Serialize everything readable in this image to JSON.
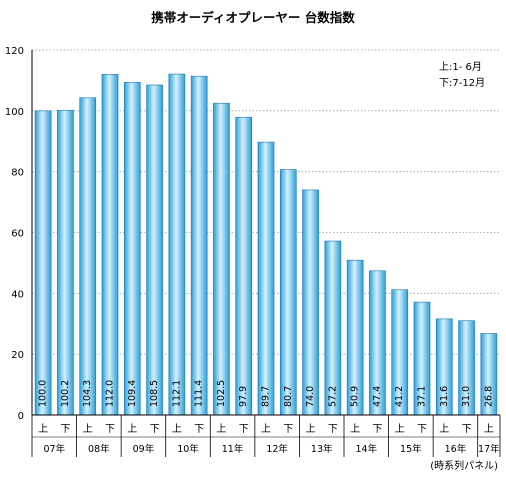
{
  "chart_data": {
    "type": "bar",
    "title": "携帯オーディオプレーヤー 台数指数",
    "categories": [
      "07年上",
      "07年下",
      "08年上",
      "08年下",
      "09年上",
      "09年下",
      "10年上",
      "10年下",
      "11年上",
      "11年下",
      "12年上",
      "12年下",
      "13年上",
      "13年下",
      "14年上",
      "14年下",
      "15年上",
      "15年下",
      "16年上",
      "16年下",
      "17年上"
    ],
    "half_labels": [
      "上",
      "下",
      "上",
      "下",
      "上",
      "下",
      "上",
      "下",
      "上",
      "下",
      "上",
      "下",
      "上",
      "下",
      "上",
      "下",
      "上",
      "下",
      "上",
      "下",
      "上"
    ],
    "year_labels": [
      "07年",
      "08年",
      "09年",
      "10年",
      "11年",
      "12年",
      "13年",
      "14年",
      "15年",
      "16年",
      "17年"
    ],
    "values": [
      100.0,
      100.2,
      104.3,
      112.0,
      109.4,
      108.5,
      112.1,
      111.4,
      102.5,
      97.9,
      89.7,
      80.7,
      74.0,
      57.2,
      50.9,
      47.4,
      41.2,
      37.1,
      31.6,
      31.0,
      26.8
    ],
    "value_labels": [
      "100.0",
      "100.2",
      "104.3",
      "112.0",
      "109.4",
      "108.5",
      "112.1",
      "111.4",
      "102.5",
      "97.9",
      "89.7",
      "80.7",
      "74.0",
      "57.2",
      "50.9",
      "47.4",
      "41.2",
      "37.1",
      "31.6",
      "31.0",
      "26.8"
    ],
    "ylim": [
      0,
      120
    ],
    "yticks": [
      0,
      20,
      40,
      60,
      80,
      100,
      120
    ],
    "grid": true,
    "legend_note": [
      "上:1- 6月",
      "下:7-12月"
    ],
    "footnote": "(時系列パネル)",
    "colors": {
      "bar": "#3ab0e8",
      "bar_light": "#c8ecfb",
      "bar_edge": "#1a78b0"
    }
  }
}
